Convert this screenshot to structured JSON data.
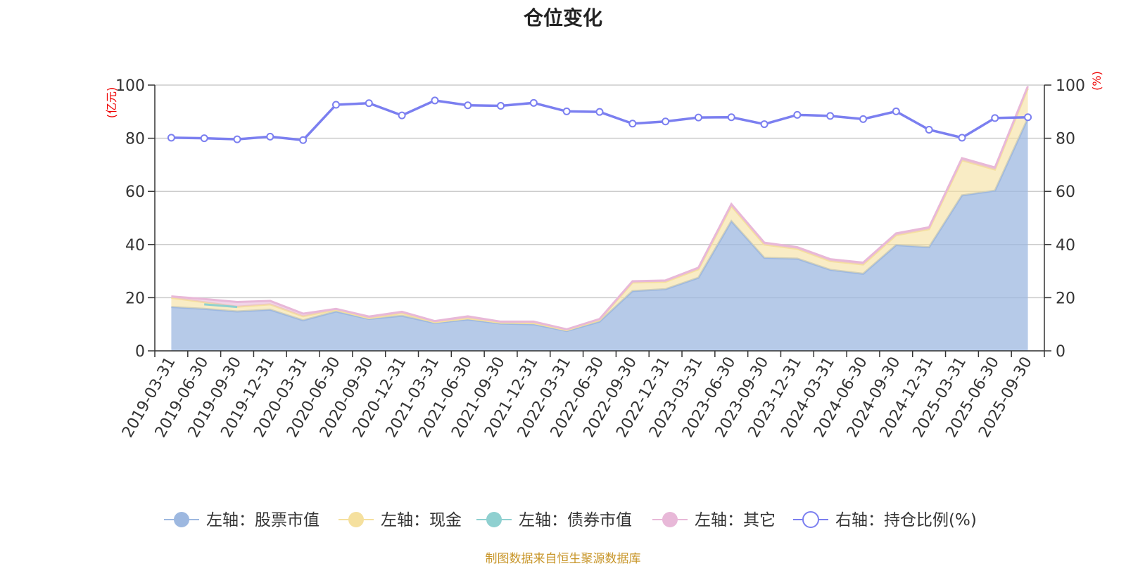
{
  "chart_data": {
    "type": "area",
    "title": "仓位变化",
    "left_axis_unit": "(亿元)",
    "right_axis_unit": "(%)",
    "ylim_left": [
      0,
      100
    ],
    "ylim_right": [
      0,
      100
    ],
    "yticks_left": [
      "0",
      "20",
      "40",
      "60",
      "80",
      "100"
    ],
    "yticks_right": [
      "0",
      "20",
      "40",
      "60",
      "80",
      "100"
    ],
    "categories": [
      "2019-03-31",
      "2019-06-30",
      "2019-09-30",
      "2019-12-31",
      "2020-03-31",
      "2020-06-30",
      "2020-09-30",
      "2020-12-31",
      "2021-03-31",
      "2021-06-30",
      "2021-09-30",
      "2021-12-31",
      "2022-03-31",
      "2022-06-30",
      "2022-09-30",
      "2022-12-31",
      "2023-03-31",
      "2023-06-30",
      "2023-09-30",
      "2023-12-31",
      "2024-03-31",
      "2024-06-30",
      "2024-09-30",
      "2024-12-31",
      "2025-03-31",
      "2025-06-30",
      "2025-09-30"
    ],
    "series": [
      {
        "name": "左轴：股票市值",
        "axis": "left",
        "kind": "stack",
        "color": "#9db8e0",
        "values": [
          16.5,
          15.8,
          14.8,
          15.5,
          11.5,
          14.8,
          12.0,
          13.2,
          10.5,
          11.8,
          10.3,
          10.0,
          7.5,
          11.0,
          22.5,
          23.2,
          27.5,
          48.8,
          35.0,
          34.7,
          30.5,
          29.0,
          39.8,
          39.0,
          58.5,
          60.3,
          87.5
        ]
      },
      {
        "name": "左轴：现金",
        "axis": "left",
        "kind": "stack",
        "color": "#f5e09e",
        "values": [
          3.5,
          2.5,
          1.8,
          2.0,
          1.5,
          0.7,
          0.3,
          1.0,
          0.3,
          0.5,
          0.3,
          0.5,
          0.3,
          0.7,
          3.2,
          2.8,
          3.2,
          5.7,
          5.0,
          3.7,
          3.3,
          3.5,
          3.7,
          6.8,
          13.2,
          7.9,
          11.3
        ]
      },
      {
        "name": "左轴：债券市值",
        "axis": "left",
        "kind": "segment",
        "color": "#8fd0d0",
        "values": [
          null,
          17.5,
          16.5,
          null,
          null,
          null,
          null,
          null,
          null,
          null,
          null,
          null,
          null,
          null,
          null,
          null,
          null,
          null,
          null,
          null,
          null,
          null,
          null,
          null,
          null,
          null,
          null
        ]
      },
      {
        "name": "左轴：其它",
        "axis": "left",
        "kind": "stack",
        "color": "#e8b8d8",
        "values": [
          0.5,
          1.2,
          1.8,
          1.3,
          1.0,
          0.3,
          0.6,
          0.5,
          0.4,
          0.7,
          0.4,
          0.5,
          0.3,
          0.3,
          0.5,
          0.5,
          0.6,
          0.7,
          0.7,
          0.6,
          0.7,
          0.7,
          0.7,
          0.7,
          0.8,
          0.8,
          0.8
        ]
      },
      {
        "name": "右轴：持仓比例(%)",
        "axis": "right",
        "kind": "line",
        "color": "#7b7ff0",
        "values": [
          80.2,
          80.0,
          79.6,
          80.6,
          79.3,
          92.6,
          93.2,
          88.6,
          94.2,
          92.4,
          92.2,
          93.3,
          90.1,
          89.9,
          85.5,
          86.3,
          87.8,
          87.9,
          85.3,
          88.8,
          88.4,
          87.2,
          90.1,
          83.2,
          80.2,
          87.6,
          87.9
        ]
      }
    ],
    "legend_position": "bottom-center",
    "grid": true
  },
  "legend": [
    {
      "label": "左轴：股票市值",
      "color": "#9db8e0",
      "marker": "filled"
    },
    {
      "label": "左轴：现金",
      "color": "#f5e09e",
      "marker": "filled"
    },
    {
      "label": "左轴：债券市值",
      "color": "#8fd0d0",
      "marker": "filled"
    },
    {
      "label": "左轴：其它",
      "color": "#e8b8d8",
      "marker": "filled"
    },
    {
      "label": "右轴：持仓比例(%)",
      "color": "#7b7ff0",
      "marker": "hollow"
    }
  ],
  "source_note": "制图数据来自恒生聚源数据库"
}
